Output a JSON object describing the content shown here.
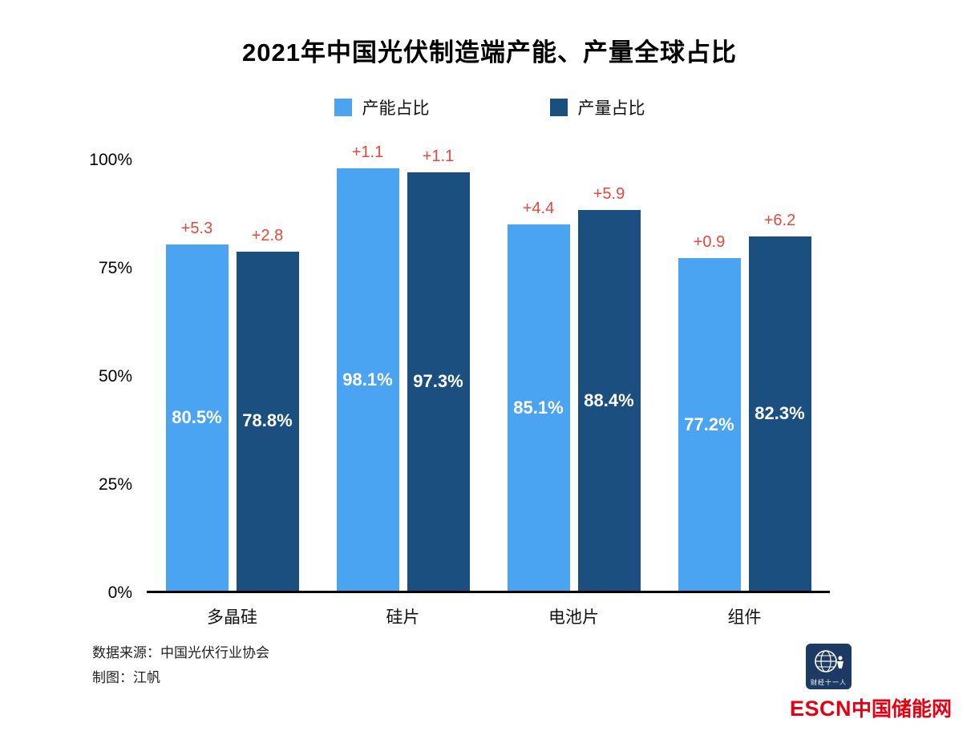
{
  "title": "2021年中国光伏制造端产能、产量全球占比",
  "legend": [
    {
      "label": "产能占比",
      "color": "#4ba4f1"
    },
    {
      "label": "产量占比",
      "color": "#1b4f80"
    }
  ],
  "chart_data": {
    "type": "bar",
    "title": "2021年中国光伏制造端产能、产量全球占比",
    "categories": [
      "多晶硅",
      "硅片",
      "电池片",
      "组件"
    ],
    "series": [
      {
        "name": "产能占比",
        "color": "#4ba4f1",
        "values": [
          80.5,
          98.1,
          85.1,
          77.2
        ],
        "value_labels": [
          "80.5%",
          "98.1%",
          "85.1%",
          "77.2%"
        ],
        "deltas": [
          "+5.3",
          "+1.1",
          "+4.4",
          "+0.9"
        ]
      },
      {
        "name": "产量占比",
        "color": "#1b4f80",
        "values": [
          78.8,
          97.3,
          88.4,
          82.3
        ],
        "value_labels": [
          "78.8%",
          "97.3%",
          "88.4%",
          "82.3%"
        ],
        "deltas": [
          "+2.8",
          "+1.1",
          "+5.9",
          "+6.2"
        ]
      }
    ],
    "xlabel": "",
    "ylabel": "",
    "ylim": [
      0,
      100
    ],
    "yticks": [
      "100%",
      "75%",
      "50%",
      "25%",
      "0%"
    ],
    "grid": false,
    "legend_position": "top",
    "delta_color": "#e8483c",
    "bar_label_color": "#ffffff"
  },
  "footer": {
    "source": "数据来源：中国光伏行业协会",
    "author": "制图：江帆"
  },
  "branding": {
    "logo_text": "财经十一人",
    "escn_bold": "ESCN",
    "escn_rest": "中国储能网",
    "escn_color": "#e60012",
    "logo_bg": "#1c3a63"
  }
}
